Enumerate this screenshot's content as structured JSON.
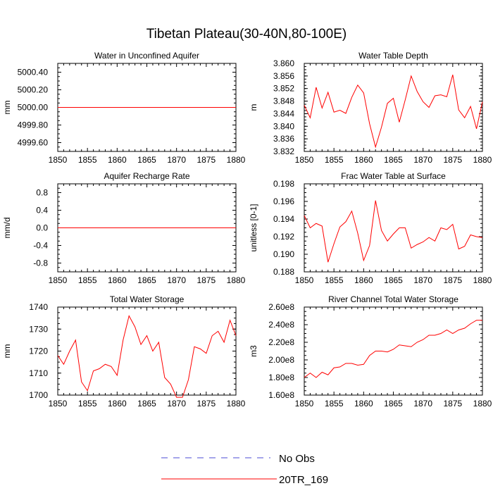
{
  "title": "Tibetan Plateau(30-40N,80-100E)",
  "colors": {
    "model": "#ff0000",
    "obs": "#4b4bd6"
  },
  "legend": {
    "obs_label": "No Obs",
    "model_label": "20TR_169"
  },
  "chart_data": [
    {
      "type": "line",
      "title": "Water in Unconfined Aquifer",
      "ylabel": "mm",
      "xlim": [
        1850,
        1880
      ],
      "ylim": [
        4999.5,
        5000.5
      ],
      "xticks": [
        1850,
        1855,
        1860,
        1865,
        1870,
        1875,
        1880
      ],
      "yticks": [
        4999.6,
        4999.8,
        5000.0,
        5000.2,
        5000.4
      ],
      "yticklabels": [
        "4999.60",
        "4999.80",
        "5000.00",
        "5000.20",
        "5000.40"
      ],
      "series": [
        {
          "name": "20TR_169",
          "x": [
            1850,
            1880
          ],
          "y": [
            5000,
            5000
          ]
        }
      ]
    },
    {
      "type": "line",
      "title": "Water Table Depth",
      "ylabel": "m",
      "xlim": [
        1850,
        1880
      ],
      "ylim": [
        3.832,
        3.86
      ],
      "xticks": [
        1850,
        1855,
        1860,
        1865,
        1870,
        1875,
        1880
      ],
      "yticks": [
        3.832,
        3.836,
        3.84,
        3.844,
        3.848,
        3.852,
        3.856,
        3.86
      ],
      "yticklabels": [
        "3.832",
        "3.836",
        "3.840",
        "3.844",
        "3.848",
        "3.852",
        "3.856",
        "3.860"
      ],
      "series": [
        {
          "name": "20TR_169",
          "x": [
            1850,
            1851,
            1852,
            1853,
            1854,
            1855,
            1856,
            1857,
            1858,
            1859,
            1860,
            1861,
            1862,
            1863,
            1864,
            1865,
            1866,
            1867,
            1868,
            1869,
            1870,
            1871,
            1872,
            1873,
            1874,
            1875,
            1876,
            1877,
            1878,
            1879,
            1880
          ],
          "y": [
            3.8467,
            3.8427,
            3.8524,
            3.8458,
            3.8508,
            3.8445,
            3.8451,
            3.8441,
            3.8492,
            3.8531,
            3.8506,
            3.8408,
            3.8334,
            3.8397,
            3.8473,
            3.8489,
            3.8413,
            3.8484,
            3.856,
            3.8511,
            3.8478,
            3.846,
            3.8497,
            3.85,
            3.8494,
            3.8564,
            3.8452,
            3.8427,
            3.8463,
            3.8392,
            3.8478
          ]
        }
      ]
    },
    {
      "type": "line",
      "title": "Aquifer Recharge Rate",
      "ylabel": "mm/d",
      "xlim": [
        1850,
        1880
      ],
      "ylim": [
        -1.0,
        1.0
      ],
      "xticks": [
        1850,
        1855,
        1860,
        1865,
        1870,
        1875,
        1880
      ],
      "yticks": [
        -0.8,
        -0.4,
        0.0,
        0.4,
        0.8
      ],
      "yticklabels": [
        "-0.8",
        "-0.4",
        "0.0",
        "0.4",
        "0.8"
      ],
      "series": [
        {
          "name": "20TR_169",
          "x": [
            1850,
            1880
          ],
          "y": [
            0,
            0
          ]
        }
      ]
    },
    {
      "type": "line",
      "title": "Frac Water Table at Surface",
      "ylabel": "unitless [0-1]",
      "xlim": [
        1850,
        1880
      ],
      "ylim": [
        0.188,
        0.198
      ],
      "xticks": [
        1850,
        1855,
        1860,
        1865,
        1870,
        1875,
        1880
      ],
      "yticks": [
        0.188,
        0.19,
        0.192,
        0.194,
        0.196,
        0.198
      ],
      "yticklabels": [
        "0.188",
        "0.190",
        "0.192",
        "0.194",
        "0.196",
        "0.198"
      ],
      "series": [
        {
          "name": "20TR_169",
          "x": [
            1850,
            1851,
            1852,
            1853,
            1854,
            1855,
            1856,
            1857,
            1858,
            1859,
            1860,
            1861,
            1862,
            1863,
            1864,
            1865,
            1866,
            1867,
            1868,
            1869,
            1870,
            1871,
            1872,
            1873,
            1874,
            1875,
            1876,
            1877,
            1878,
            1879,
            1880
          ],
          "y": [
            0.1944,
            0.193,
            0.1935,
            0.1932,
            0.1891,
            0.1912,
            0.1931,
            0.1937,
            0.1949,
            0.1924,
            0.1893,
            0.191,
            0.1961,
            0.1927,
            0.1915,
            0.1923,
            0.193,
            0.193,
            0.1907,
            0.1911,
            0.1914,
            0.1919,
            0.1915,
            0.193,
            0.1928,
            0.1934,
            0.1906,
            0.1909,
            0.1922,
            0.192,
            0.1919
          ]
        }
      ]
    },
    {
      "type": "line",
      "title": "Total Water Storage",
      "ylabel": "mm",
      "xlim": [
        1850,
        1880
      ],
      "ylim": [
        1700,
        1740
      ],
      "xticks": [
        1850,
        1855,
        1860,
        1865,
        1870,
        1875,
        1880
      ],
      "yticks": [
        1700,
        1710,
        1720,
        1730,
        1740
      ],
      "yticklabels": [
        "1700",
        "1710",
        "1720",
        "1730",
        "1740"
      ],
      "series": [
        {
          "name": "20TR_169",
          "x": [
            1850,
            1851,
            1852,
            1853,
            1854,
            1855,
            1856,
            1857,
            1858,
            1859,
            1860,
            1861,
            1862,
            1863,
            1864,
            1865,
            1866,
            1867,
            1868,
            1869,
            1870,
            1871,
            1872,
            1873,
            1874,
            1875,
            1876,
            1877,
            1878,
            1879,
            1880
          ],
          "y": [
            1718,
            1714,
            1720,
            1725,
            1706,
            1702,
            1711,
            1712,
            1714,
            1713,
            1709,
            1725,
            1736,
            1731,
            1723,
            1727,
            1720,
            1724,
            1708,
            1705,
            1699,
            1699,
            1707,
            1722,
            1721,
            1719,
            1727,
            1729,
            1724,
            1734,
            1727
          ]
        }
      ]
    },
    {
      "type": "line",
      "title": "River Channel Total Water Storage",
      "ylabel": "m3",
      "xlim": [
        1850,
        1880
      ],
      "ylim": [
        160000000,
        260000000
      ],
      "xticks": [
        1850,
        1855,
        1860,
        1865,
        1870,
        1875,
        1880
      ],
      "yticks": [
        160000000,
        180000000,
        200000000,
        220000000,
        240000000,
        260000000
      ],
      "yticklabels": [
        "1.60e8",
        "1.80e8",
        "2.00e8",
        "2.20e8",
        "2.40e8",
        "2.60e8"
      ],
      "series": [
        {
          "name": "20TR_169",
          "x": [
            1850,
            1851,
            1852,
            1853,
            1854,
            1855,
            1856,
            1857,
            1858,
            1859,
            1860,
            1861,
            1862,
            1863,
            1864,
            1865,
            1866,
            1867,
            1868,
            1869,
            1870,
            1871,
            1872,
            1873,
            1874,
            1875,
            1876,
            1877,
            1878,
            1879,
            1880
          ],
          "y": [
            180000000,
            185000000,
            180000000,
            186000000,
            183000000,
            191000000,
            192000000,
            196000000,
            196000000,
            194000000,
            195000000,
            205000000,
            210000000,
            210000000,
            209000000,
            212000000,
            217000000,
            216000000,
            215000000,
            220000000,
            223000000,
            228000000,
            228000000,
            230000000,
            234000000,
            230000000,
            234000000,
            236000000,
            241000000,
            245000000,
            245000000
          ]
        }
      ]
    }
  ]
}
